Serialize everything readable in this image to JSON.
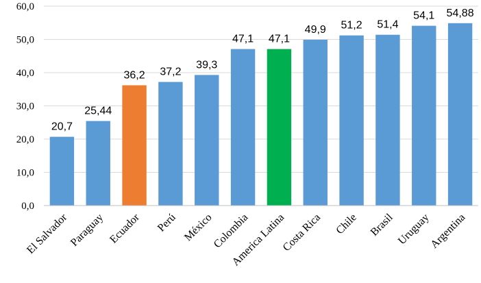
{
  "chart_data": {
    "type": "bar",
    "title": "",
    "xlabel": "",
    "ylabel": "",
    "ylim": [
      0,
      60
    ],
    "ytick_step": 10,
    "ytick_labels": [
      "0,0",
      "10,0",
      "20,0",
      "30,0",
      "40,0",
      "50,0",
      "60,0"
    ],
    "grid": true,
    "legend": "none",
    "categories": [
      "El Salvador",
      "Paraguay",
      "Ecuador",
      "Perú",
      "México",
      "Colombia",
      "America Latina",
      "Costa Rica",
      "Chile",
      "Brasil",
      "Uruguay",
      "Argentina"
    ],
    "values": [
      20.7,
      25.44,
      36.2,
      37.2,
      39.3,
      47.1,
      47.1,
      49.9,
      51.2,
      51.4,
      54.1,
      54.88
    ],
    "value_labels": [
      "20,7",
      "25,44",
      "36,2",
      "37,2",
      "39,3",
      "47,1",
      "47,1",
      "49,9",
      "51,2",
      "51,4",
      "54,1",
      "54,88"
    ],
    "colors": {
      "default": "#5b9bd5",
      "Ecuador": "#ed7d31",
      "America Latina": "#00b050"
    }
  }
}
